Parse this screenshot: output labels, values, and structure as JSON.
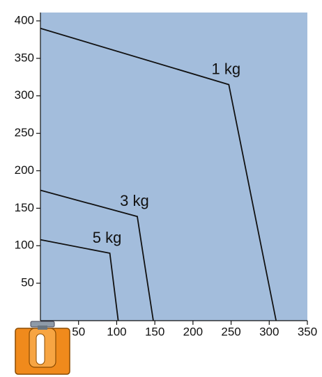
{
  "chart_data": {
    "type": "line",
    "series": [
      {
        "name": "1 kg",
        "color": "#111111",
        "x": [
          0,
          247,
          309
        ],
        "values": [
          390,
          315,
          0
        ]
      },
      {
        "name": "3 kg",
        "color": "#111111",
        "x": [
          0,
          127,
          148
        ],
        "values": [
          174,
          139,
          0
        ]
      },
      {
        "name": "5 kg",
        "color": "#111111",
        "x": [
          0,
          91,
          102
        ],
        "values": [
          108,
          90,
          0
        ]
      }
    ],
    "xlim": [
      0,
      350
    ],
    "ylim": [
      0,
      400
    ],
    "xticks": [
      50,
      100,
      150,
      200,
      250,
      300,
      350
    ],
    "yticks": [
      50,
      100,
      150,
      200,
      250,
      300,
      350,
      400
    ],
    "background": "#a3bddc"
  }
}
